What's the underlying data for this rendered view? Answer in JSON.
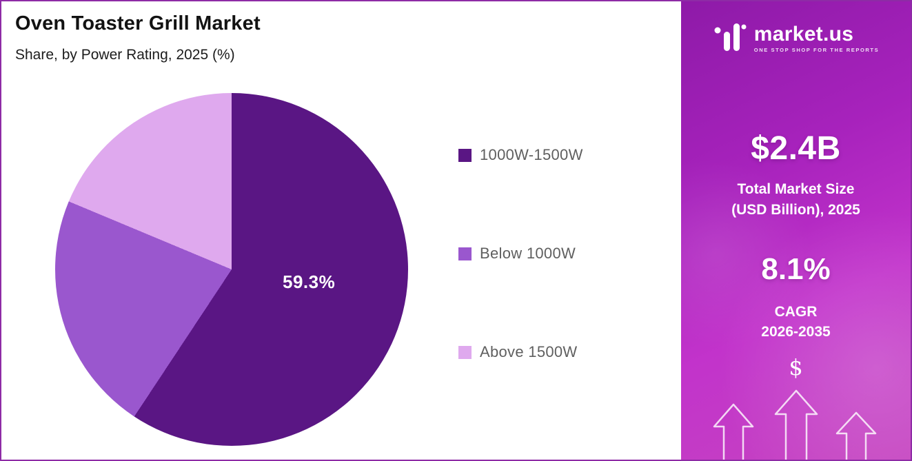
{
  "title": "Oven Toaster Grill Market",
  "subtitle": "Share, by Power Rating, 2025 (%)",
  "chart_data": {
    "type": "pie",
    "title": "Oven Toaster Grill Market",
    "subtitle": "Share, by Power Rating, 2025 (%)",
    "legend_position": "right",
    "start_angle_deg": 0,
    "direction": "clockwise",
    "slices": [
      {
        "label": "1000W-1500W",
        "value": 59.3,
        "color": "#5a1684",
        "data_label": "59.3%"
      },
      {
        "label": "Below 1000W",
        "value": 22.0,
        "color": "#9a57ce",
        "data_label": ""
      },
      {
        "label": "Above 1500W",
        "value": 18.7,
        "color": "#dfa9ee",
        "data_label": ""
      }
    ]
  },
  "sidebar": {
    "logo_text": "market.us",
    "logo_tagline": "ONE STOP SHOP FOR THE REPORTS",
    "market_size_value": "$2.4B",
    "market_size_label_line1": "Total Market Size",
    "market_size_label_line2": "(USD Billion), 2025",
    "cagr_value": "8.1%",
    "cagr_label_line1": "CAGR",
    "cagr_label_line2": "2026-2035",
    "dollar_glyph": "$"
  },
  "colors": {
    "page_border": "#8e2ba6",
    "sidebar_gradient_start": "#8e1aa8",
    "sidebar_gradient_end": "#c544c0",
    "legend_text": "#5f5f5f"
  }
}
